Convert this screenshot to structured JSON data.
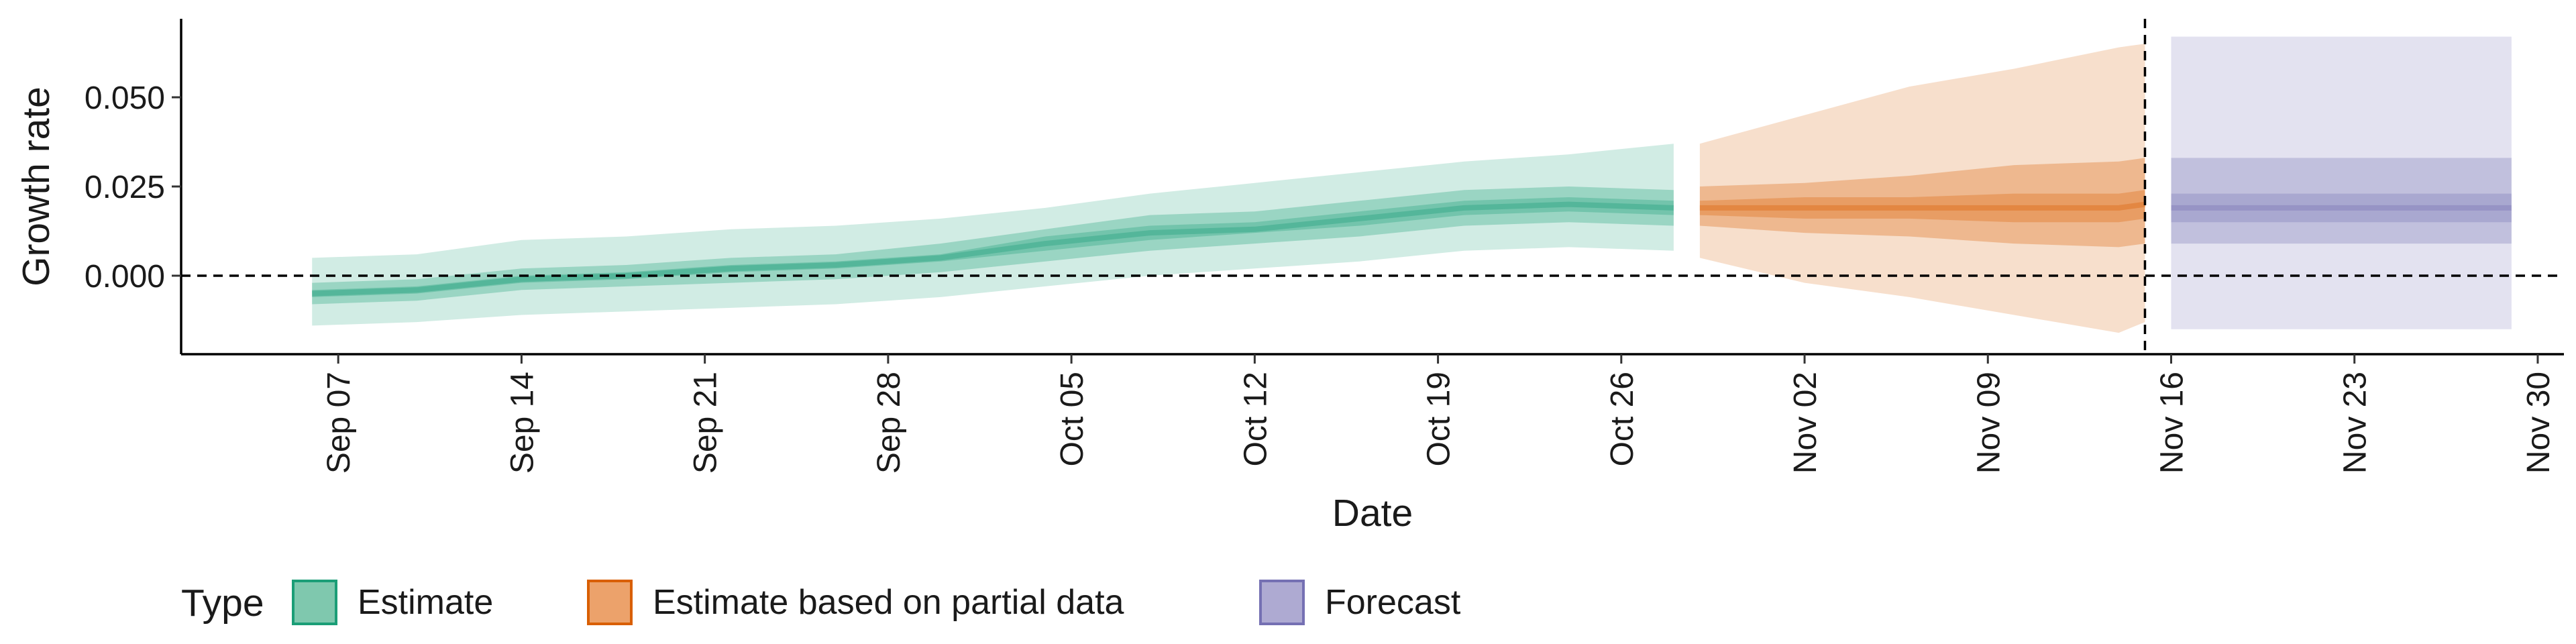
{
  "chart_data": {
    "type": "area",
    "xlabel": "Date",
    "ylabel": "Growth rate",
    "xlim": [
      "2020-09-01",
      "2020-12-01"
    ],
    "ylim": [
      -0.022,
      0.072
    ],
    "x_ticks": [
      "2020-09-07",
      "2020-09-14",
      "2020-09-21",
      "2020-09-28",
      "2020-10-05",
      "2020-10-12",
      "2020-10-19",
      "2020-10-26",
      "2020-11-02",
      "2020-11-09",
      "2020-11-16",
      "2020-11-23",
      "2020-11-30"
    ],
    "x_tick_labels": [
      "Sep 07",
      "Sep 14",
      "Sep 21",
      "Sep 28",
      "Oct 05",
      "Oct 12",
      "Oct 19",
      "Oct 26",
      "Nov 02",
      "Nov 09",
      "Nov 16",
      "Nov 23",
      "Nov 30"
    ],
    "y_ticks": [
      0.0,
      0.025,
      0.05
    ],
    "y_tick_labels": [
      "0.000",
      "0.025",
      "0.050"
    ],
    "reference_lines": [
      {
        "axis": "y",
        "value": 0,
        "style": "dashed"
      },
      {
        "axis": "x",
        "value": "2020-11-15",
        "style": "dashed"
      }
    ],
    "legend": {
      "title": "Type",
      "position": "bottom-left",
      "entries": [
        {
          "label": "Estimate",
          "fill": "#7fc8ae",
          "stroke": "#1b9e77"
        },
        {
          "label": "Estimate based on partial data",
          "fill": "#eca26b",
          "stroke": "#d95f02"
        },
        {
          "label": "Forecast",
          "fill": "#aeaad2",
          "stroke": "#7570b3"
        }
      ]
    },
    "series": [
      {
        "name": "Estimate",
        "color": "#1b9e77",
        "points": [
          {
            "x": "2020-09-06",
            "lo90": -0.014,
            "lo50": -0.008,
            "lo20": -0.006,
            "median": -0.005,
            "hi20": -0.004,
            "hi50": -0.002,
            "hi90": 0.005
          },
          {
            "x": "2020-09-10",
            "lo90": -0.013,
            "lo50": -0.007,
            "lo20": -0.005,
            "median": -0.004,
            "hi20": -0.003,
            "hi50": -0.001,
            "hi90": 0.006
          },
          {
            "x": "2020-09-14",
            "lo90": -0.011,
            "lo50": -0.004,
            "lo20": -0.002,
            "median": -0.001,
            "hi20": 0.0,
            "hi50": 0.002,
            "hi90": 0.01
          },
          {
            "x": "2020-09-18",
            "lo90": -0.01,
            "lo50": -0.003,
            "lo20": -0.001,
            "median": 0.0,
            "hi20": 0.001,
            "hi50": 0.003,
            "hi90": 0.011
          },
          {
            "x": "2020-09-22",
            "lo90": -0.009,
            "lo50": -0.002,
            "lo20": 0.001,
            "median": 0.002,
            "hi20": 0.003,
            "hi50": 0.005,
            "hi90": 0.013
          },
          {
            "x": "2020-09-26",
            "lo90": -0.008,
            "lo50": -0.001,
            "lo20": 0.002,
            "median": 0.003,
            "hi20": 0.004,
            "hi50": 0.006,
            "hi90": 0.014
          },
          {
            "x": "2020-09-30",
            "lo90": -0.006,
            "lo50": 0.001,
            "lo20": 0.004,
            "median": 0.005,
            "hi20": 0.006,
            "hi50": 0.009,
            "hi90": 0.016
          },
          {
            "x": "2020-10-04",
            "lo90": -0.003,
            "lo50": 0.004,
            "lo20": 0.007,
            "median": 0.009,
            "hi20": 0.011,
            "hi50": 0.013,
            "hi90": 0.019
          },
          {
            "x": "2020-10-08",
            "lo90": 0.0,
            "lo50": 0.007,
            "lo20": 0.01,
            "median": 0.012,
            "hi20": 0.014,
            "hi50": 0.017,
            "hi90": 0.023
          },
          {
            "x": "2020-10-12",
            "lo90": 0.002,
            "lo50": 0.009,
            "lo20": 0.012,
            "median": 0.013,
            "hi20": 0.015,
            "hi50": 0.018,
            "hi90": 0.026
          },
          {
            "x": "2020-10-16",
            "lo90": 0.004,
            "lo50": 0.011,
            "lo20": 0.014,
            "median": 0.016,
            "hi20": 0.018,
            "hi50": 0.021,
            "hi90": 0.029
          },
          {
            "x": "2020-10-20",
            "lo90": 0.007,
            "lo50": 0.014,
            "lo20": 0.017,
            "median": 0.019,
            "hi20": 0.021,
            "hi50": 0.024,
            "hi90": 0.032
          },
          {
            "x": "2020-10-24",
            "lo90": 0.008,
            "lo50": 0.015,
            "lo20": 0.018,
            "median": 0.02,
            "hi20": 0.022,
            "hi50": 0.025,
            "hi90": 0.034
          },
          {
            "x": "2020-10-28",
            "lo90": 0.007,
            "lo50": 0.014,
            "lo20": 0.017,
            "median": 0.019,
            "hi20": 0.021,
            "hi50": 0.024,
            "hi90": 0.037
          }
        ]
      },
      {
        "name": "Estimate based on partial data",
        "color": "#d95f02",
        "points": [
          {
            "x": "2020-10-29",
            "lo90": 0.005,
            "lo50": 0.014,
            "lo20": 0.017,
            "median": 0.019,
            "hi20": 0.021,
            "hi50": 0.025,
            "hi90": 0.037
          },
          {
            "x": "2020-11-02",
            "lo90": -0.002,
            "lo50": 0.012,
            "lo20": 0.016,
            "median": 0.019,
            "hi20": 0.022,
            "hi50": 0.026,
            "hi90": 0.045
          },
          {
            "x": "2020-11-06",
            "lo90": -0.006,
            "lo50": 0.011,
            "lo20": 0.016,
            "median": 0.019,
            "hi20": 0.022,
            "hi50": 0.028,
            "hi90": 0.053
          },
          {
            "x": "2020-11-10",
            "lo90": -0.011,
            "lo50": 0.009,
            "lo20": 0.015,
            "median": 0.019,
            "hi20": 0.023,
            "hi50": 0.031,
            "hi90": 0.058
          },
          {
            "x": "2020-11-14",
            "lo90": -0.016,
            "lo50": 0.008,
            "lo20": 0.015,
            "median": 0.019,
            "hi20": 0.023,
            "hi50": 0.032,
            "hi90": 0.064
          },
          {
            "x": "2020-11-15",
            "lo90": -0.013,
            "lo50": 0.009,
            "lo20": 0.016,
            "median": 0.02,
            "hi20": 0.024,
            "hi50": 0.033,
            "hi90": 0.065
          }
        ]
      },
      {
        "name": "Forecast",
        "color": "#7570b3",
        "points": [
          {
            "x": "2020-11-16",
            "lo90": -0.015,
            "lo50": 0.009,
            "lo20": 0.015,
            "median": 0.019,
            "hi20": 0.023,
            "hi50": 0.033,
            "hi90": 0.067
          },
          {
            "x": "2020-11-29",
            "lo90": -0.015,
            "lo50": 0.009,
            "lo20": 0.015,
            "median": 0.019,
            "hi20": 0.023,
            "hi50": 0.033,
            "hi90": 0.067
          }
        ]
      }
    ]
  }
}
